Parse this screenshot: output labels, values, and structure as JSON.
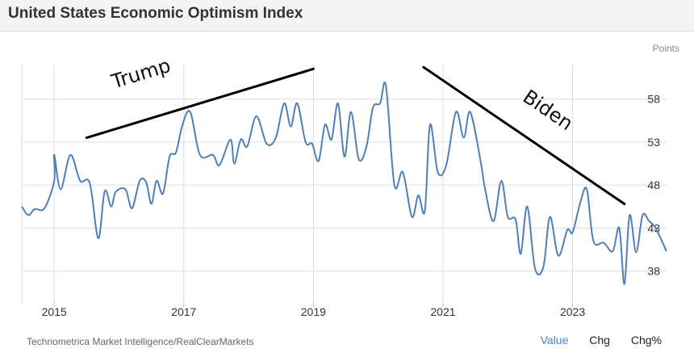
{
  "header": {
    "title": "United States Economic Optimism Index"
  },
  "units": "Points",
  "source": "Technometrica Market Intelligence/RealClearMarkets",
  "tabs": [
    {
      "label": "Value",
      "active": true
    },
    {
      "label": "Chg",
      "active": false
    },
    {
      "label": "Chg%",
      "active": false
    }
  ],
  "colors": {
    "line": "#4f7fb8",
    "grid": "#dedede",
    "annotation": "#000000",
    "active_tab": "#4a86c8"
  },
  "chart_data": {
    "type": "line",
    "title": "United States Economic Optimism Index",
    "ylabel": "Points",
    "xlim": [
      2014.5,
      2024.45
    ],
    "ylim": [
      34.3,
      62
    ],
    "yticks": [
      38,
      43,
      48,
      53,
      58
    ],
    "xticks": [
      2015,
      2017,
      2019,
      2021,
      2023
    ],
    "grid": true,
    "series": [
      {
        "name": "Economic Optimism Index",
        "points": [
          [
            2014.5,
            45.5
          ],
          [
            2014.6,
            44.5
          ],
          [
            2014.7,
            45.2
          ],
          [
            2014.85,
            45.3
          ],
          [
            2015.0,
            48.5
          ],
          [
            2015.0,
            51.5
          ],
          [
            2015.1,
            47.5
          ],
          [
            2015.25,
            51.5
          ],
          [
            2015.4,
            48.5
          ],
          [
            2015.55,
            48.2
          ],
          [
            2015.68,
            41.8
          ],
          [
            2015.78,
            47.3
          ],
          [
            2015.88,
            45.5
          ],
          [
            2015.95,
            47.2
          ],
          [
            2016.1,
            47.5
          ],
          [
            2016.2,
            45.3
          ],
          [
            2016.32,
            48.5
          ],
          [
            2016.42,
            48.3
          ],
          [
            2016.5,
            45.8
          ],
          [
            2016.58,
            48.5
          ],
          [
            2016.68,
            47.0
          ],
          [
            2016.78,
            51.3
          ],
          [
            2016.88,
            51.8
          ],
          [
            2016.98,
            55.0
          ],
          [
            2017.1,
            56.5
          ],
          [
            2017.25,
            51.5
          ],
          [
            2017.45,
            51.5
          ],
          [
            2017.55,
            50.3
          ],
          [
            2017.72,
            53.3
          ],
          [
            2017.78,
            50.5
          ],
          [
            2017.88,
            53.3
          ],
          [
            2017.98,
            52.5
          ],
          [
            2018.12,
            56.0
          ],
          [
            2018.28,
            52.8
          ],
          [
            2018.42,
            53.5
          ],
          [
            2018.55,
            57.5
          ],
          [
            2018.65,
            54.8
          ],
          [
            2018.75,
            57.5
          ],
          [
            2018.88,
            53.0
          ],
          [
            2018.98,
            52.8
          ],
          [
            2019.08,
            50.8
          ],
          [
            2019.18,
            55.0
          ],
          [
            2019.28,
            53.3
          ],
          [
            2019.38,
            57.5
          ],
          [
            2019.48,
            51.3
          ],
          [
            2019.58,
            56.5
          ],
          [
            2019.7,
            51.0
          ],
          [
            2019.82,
            52.5
          ],
          [
            2019.92,
            57.0
          ],
          [
            2020.03,
            57.5
          ],
          [
            2020.12,
            59.5
          ],
          [
            2020.25,
            48.0
          ],
          [
            2020.38,
            49.5
          ],
          [
            2020.52,
            44.3
          ],
          [
            2020.62,
            46.8
          ],
          [
            2020.72,
            45.0
          ],
          [
            2020.8,
            55.0
          ],
          [
            2020.92,
            49.5
          ],
          [
            2021.05,
            50.3
          ],
          [
            2021.2,
            56.5
          ],
          [
            2021.32,
            53.5
          ],
          [
            2021.42,
            56.5
          ],
          [
            2021.58,
            50.8
          ],
          [
            2021.65,
            47.5
          ],
          [
            2021.78,
            43.8
          ],
          [
            2021.9,
            48.5
          ],
          [
            2022.0,
            44.3
          ],
          [
            2022.12,
            44.0
          ],
          [
            2022.2,
            40.0
          ],
          [
            2022.3,
            45.5
          ],
          [
            2022.42,
            38.3
          ],
          [
            2022.55,
            38.5
          ],
          [
            2022.65,
            44.3
          ],
          [
            2022.78,
            39.8
          ],
          [
            2022.92,
            42.8
          ],
          [
            2023.0,
            42.5
          ],
          [
            2023.12,
            46.0
          ],
          [
            2023.22,
            47.5
          ],
          [
            2023.32,
            41.5
          ],
          [
            2023.48,
            41.3
          ],
          [
            2023.62,
            40.3
          ],
          [
            2023.72,
            43.0
          ],
          [
            2023.8,
            36.5
          ],
          [
            2023.88,
            44.5
          ],
          [
            2023.98,
            40.2
          ],
          [
            2024.08,
            44.5
          ],
          [
            2024.18,
            43.8
          ],
          [
            2024.28,
            43.0
          ],
          [
            2024.45,
            40.3
          ]
        ]
      }
    ],
    "annotations": [
      {
        "label": "Trump",
        "from": [
          2015.5,
          53.5
        ],
        "to": [
          2019.0,
          61.5
        ]
      },
      {
        "label": "Biden",
        "from": [
          2020.7,
          61.7
        ],
        "to": [
          2023.8,
          45.8
        ]
      }
    ]
  }
}
